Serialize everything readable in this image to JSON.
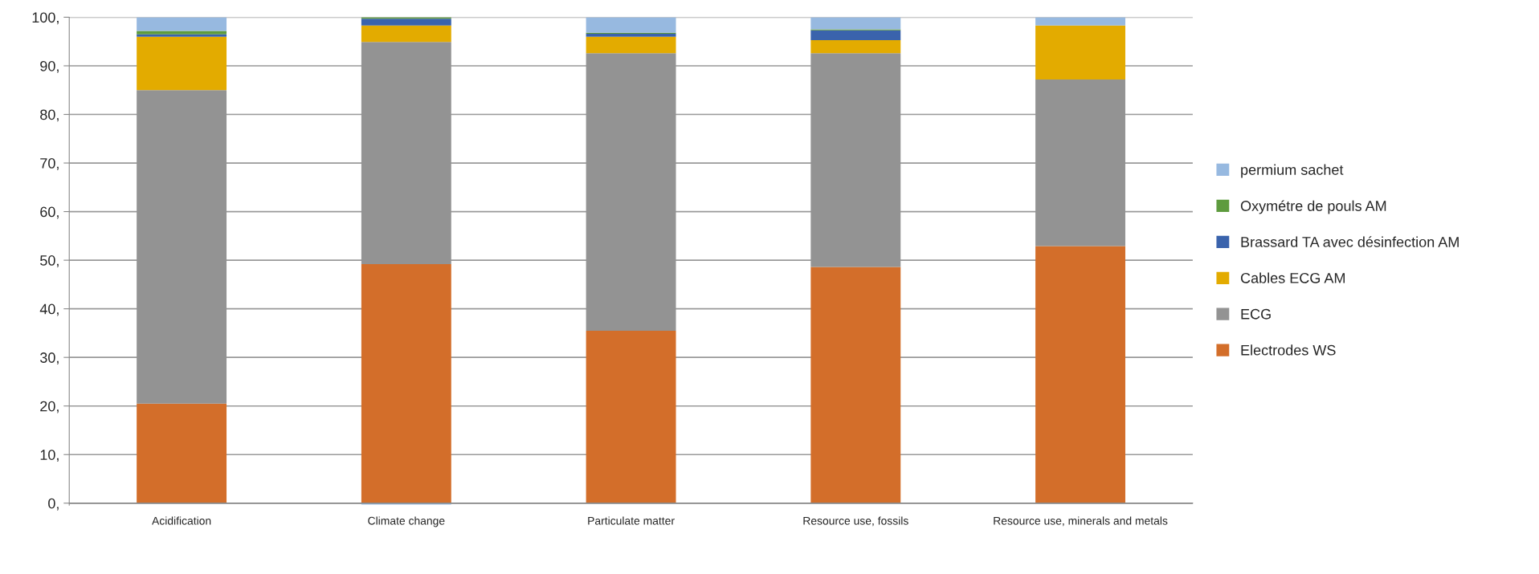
{
  "chart_data": {
    "type": "bar",
    "stacked": true,
    "categories": [
      "Acidification",
      "Climate change",
      "Particulate matter",
      "Resource use, fossils",
      "Resource use, minerals and metals"
    ],
    "series": [
      {
        "name": "Electrodes WS",
        "color": "#d36e2a",
        "values": [
          20.5,
          49.2,
          35.5,
          48.6,
          52.9
        ]
      },
      {
        "name": "ECG",
        "color": "#939393",
        "values": [
          64.5,
          45.7,
          57.1,
          44.0,
          34.3
        ]
      },
      {
        "name": "Cables ECG AM",
        "color": "#e3ab00",
        "values": [
          11.0,
          3.4,
          3.4,
          2.7,
          11.1
        ]
      },
      {
        "name": "Brassard TA avec désinfection AM",
        "color": "#3a63ac",
        "values": [
          0.5,
          1.4,
          0.6,
          2.0,
          0
        ]
      },
      {
        "name": "Oxymétre de pouls AM",
        "color": "#5e9b3e",
        "values": [
          0.7,
          0.3,
          0.2,
          0.2,
          0
        ]
      },
      {
        "name": "permium sachet",
        "color": "#97b9e0",
        "values": [
          2.8,
          -0.3,
          3.2,
          2.5,
          1.7
        ]
      }
    ],
    "ylim": [
      -0.4,
      100
    ],
    "yticks": [
      {
        "value": 0,
        "label": "0,"
      },
      {
        "value": 10,
        "label": "10,"
      },
      {
        "value": 20,
        "label": "20,"
      },
      {
        "value": 30,
        "label": "30,"
      },
      {
        "value": 40,
        "label": "40,"
      },
      {
        "value": 50,
        "label": "50,"
      },
      {
        "value": 60,
        "label": "60,"
      },
      {
        "value": 70,
        "label": "70,"
      },
      {
        "value": 80,
        "label": "80,"
      },
      {
        "value": 90,
        "label": "90,"
      },
      {
        "value": 100,
        "label": "100,"
      }
    ],
    "grid": "y",
    "legend": "right"
  }
}
